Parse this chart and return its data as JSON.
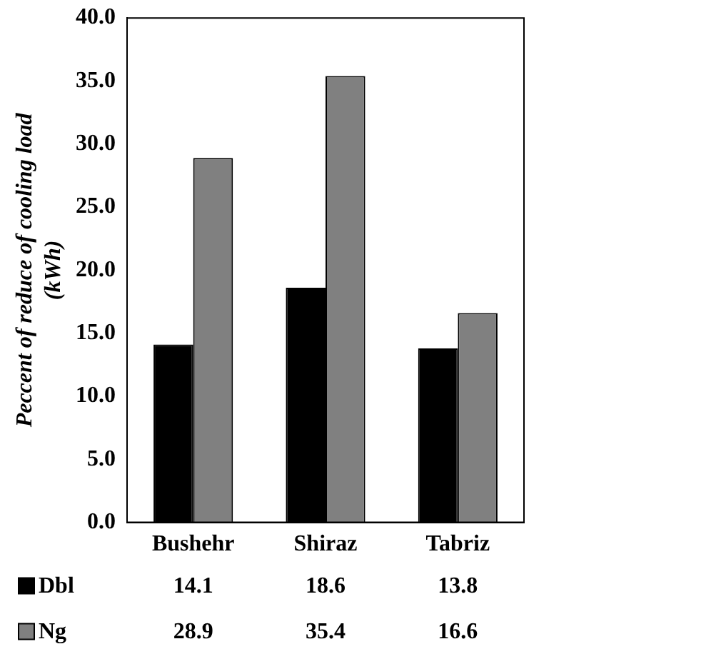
{
  "chart_data": {
    "type": "bar",
    "ylabel": "Peccent of reduce of cooling load (kWh)",
    "categories": [
      "Bushehr",
      "Shiraz",
      "Tabriz"
    ],
    "series": [
      {
        "name": "Dbl",
        "color": "#000000",
        "values": [
          14.1,
          18.6,
          13.8
        ]
      },
      {
        "name": "Ng",
        "color": "#808080",
        "values": [
          28.9,
          35.4,
          16.6
        ]
      }
    ],
    "ylim": [
      0,
      40
    ],
    "yticks": [
      {
        "value": 0,
        "label": "0.0"
      },
      {
        "value": 5,
        "label": "5.0"
      },
      {
        "value": 10,
        "label": "10.0"
      },
      {
        "value": 15,
        "label": "15.0"
      },
      {
        "value": 20,
        "label": "20.0"
      },
      {
        "value": 25,
        "label": "25.0"
      },
      {
        "value": 30,
        "label": "30.0"
      },
      {
        "value": 35,
        "label": "35.0"
      },
      {
        "value": 40,
        "label": "40.0"
      }
    ],
    "grid": false,
    "legend": "bottom",
    "data_labels": true
  }
}
